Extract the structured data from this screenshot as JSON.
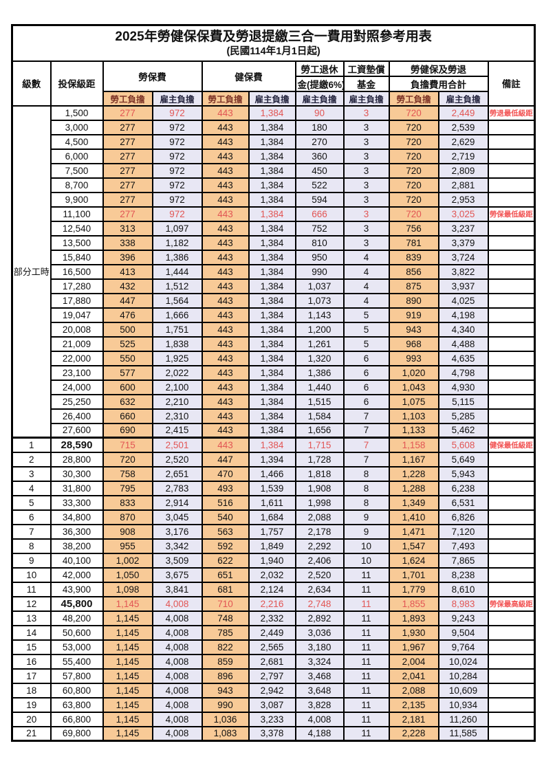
{
  "title": "2025年勞健保保費及勞退提繳三合一費用對照參考用表",
  "subtitle": "(民國114年1月1日起)",
  "colors": {
    "employee_bg": "#F8CA97",
    "employer_bg": "#E8E7F4",
    "highlight_text": "#E25554",
    "remark_text": "#F25454"
  },
  "header": {
    "level": "級數",
    "bracket": "投保級距",
    "labor_ins": "勞保費",
    "health_ins": "健保費",
    "pension_line1": "勞工退休",
    "pension_line2": "金(提繳6%)",
    "fund_line1": "工資墊償",
    "fund_line2": "基金",
    "total_line1": "勞健保及勞退",
    "total_line2": "負擔費用合計",
    "employee": "勞工負擔",
    "employer": "雇主負擔",
    "remark": "備註"
  },
  "part_time_label": "部分工時",
  "rows": [
    {
      "level": "",
      "bracket": "1,500",
      "values": [
        "277",
        "972",
        "443",
        "1,384",
        "90",
        "3",
        "720",
        "2,449"
      ],
      "remark": "勞退最低級距",
      "highlight": true,
      "bracket_bold": false,
      "section_start": false
    },
    {
      "level": "",
      "bracket": "3,000",
      "values": [
        "277",
        "972",
        "443",
        "1,384",
        "180",
        "3",
        "720",
        "2,539"
      ],
      "remark": "",
      "highlight": false,
      "bracket_bold": false,
      "section_start": false
    },
    {
      "level": "",
      "bracket": "4,500",
      "values": [
        "277",
        "972",
        "443",
        "1,384",
        "270",
        "3",
        "720",
        "2,629"
      ],
      "remark": "",
      "highlight": false,
      "bracket_bold": false,
      "section_start": false
    },
    {
      "level": "",
      "bracket": "6,000",
      "values": [
        "277",
        "972",
        "443",
        "1,384",
        "360",
        "3",
        "720",
        "2,719"
      ],
      "remark": "",
      "highlight": false,
      "bracket_bold": false,
      "section_start": false
    },
    {
      "level": "",
      "bracket": "7,500",
      "values": [
        "277",
        "972",
        "443",
        "1,384",
        "450",
        "3",
        "720",
        "2,809"
      ],
      "remark": "",
      "highlight": false,
      "bracket_bold": false,
      "section_start": false
    },
    {
      "level": "",
      "bracket": "8,700",
      "values": [
        "277",
        "972",
        "443",
        "1,384",
        "522",
        "3",
        "720",
        "2,881"
      ],
      "remark": "",
      "highlight": false,
      "bracket_bold": false,
      "section_start": false
    },
    {
      "level": "",
      "bracket": "9,900",
      "values": [
        "277",
        "972",
        "443",
        "1,384",
        "594",
        "3",
        "720",
        "2,953"
      ],
      "remark": "",
      "highlight": false,
      "bracket_bold": false,
      "section_start": false
    },
    {
      "level": "",
      "bracket": "11,100",
      "values": [
        "277",
        "972",
        "443",
        "1,384",
        "666",
        "3",
        "720",
        "3,025"
      ],
      "remark": "勞保最低級距",
      "highlight": true,
      "bracket_bold": false,
      "section_start": false
    },
    {
      "level": "",
      "bracket": "12,540",
      "values": [
        "313",
        "1,097",
        "443",
        "1,384",
        "752",
        "3",
        "756",
        "3,237"
      ],
      "remark": "",
      "highlight": false,
      "bracket_bold": false,
      "section_start": false
    },
    {
      "level": "",
      "bracket": "13,500",
      "values": [
        "338",
        "1,182",
        "443",
        "1,384",
        "810",
        "3",
        "781",
        "3,379"
      ],
      "remark": "",
      "highlight": false,
      "bracket_bold": false,
      "section_start": false
    },
    {
      "level": "",
      "bracket": "15,840",
      "values": [
        "396",
        "1,386",
        "443",
        "1,384",
        "950",
        "4",
        "839",
        "3,724"
      ],
      "remark": "",
      "highlight": false,
      "bracket_bold": false,
      "section_start": false
    },
    {
      "level": "",
      "bracket": "16,500",
      "values": [
        "413",
        "1,444",
        "443",
        "1,384",
        "990",
        "4",
        "856",
        "3,822"
      ],
      "remark": "",
      "highlight": false,
      "bracket_bold": false,
      "section_start": false
    },
    {
      "level": "",
      "bracket": "17,280",
      "values": [
        "432",
        "1,512",
        "443",
        "1,384",
        "1,037",
        "4",
        "875",
        "3,937"
      ],
      "remark": "",
      "highlight": false,
      "bracket_bold": false,
      "section_start": false
    },
    {
      "level": "",
      "bracket": "17,880",
      "values": [
        "447",
        "1,564",
        "443",
        "1,384",
        "1,073",
        "4",
        "890",
        "4,025"
      ],
      "remark": "",
      "highlight": false,
      "bracket_bold": false,
      "section_start": false
    },
    {
      "level": "",
      "bracket": "19,047",
      "values": [
        "476",
        "1,666",
        "443",
        "1,384",
        "1,143",
        "5",
        "919",
        "4,198"
      ],
      "remark": "",
      "highlight": false,
      "bracket_bold": false,
      "section_start": false
    },
    {
      "level": "",
      "bracket": "20,008",
      "values": [
        "500",
        "1,751",
        "443",
        "1,384",
        "1,200",
        "5",
        "943",
        "4,340"
      ],
      "remark": "",
      "highlight": false,
      "bracket_bold": false,
      "section_start": false
    },
    {
      "level": "",
      "bracket": "21,009",
      "values": [
        "525",
        "1,838",
        "443",
        "1,384",
        "1,261",
        "5",
        "968",
        "4,488"
      ],
      "remark": "",
      "highlight": false,
      "bracket_bold": false,
      "section_start": false
    },
    {
      "level": "",
      "bracket": "22,000",
      "values": [
        "550",
        "1,925",
        "443",
        "1,384",
        "1,320",
        "6",
        "993",
        "4,635"
      ],
      "remark": "",
      "highlight": false,
      "bracket_bold": false,
      "section_start": false
    },
    {
      "level": "",
      "bracket": "23,100",
      "values": [
        "577",
        "2,022",
        "443",
        "1,384",
        "1,386",
        "6",
        "1,020",
        "4,798"
      ],
      "remark": "",
      "highlight": false,
      "bracket_bold": false,
      "section_start": false
    },
    {
      "level": "",
      "bracket": "24,000",
      "values": [
        "600",
        "2,100",
        "443",
        "1,384",
        "1,440",
        "6",
        "1,043",
        "4,930"
      ],
      "remark": "",
      "highlight": false,
      "bracket_bold": false,
      "section_start": false
    },
    {
      "level": "",
      "bracket": "25,250",
      "values": [
        "632",
        "2,210",
        "443",
        "1,384",
        "1,515",
        "6",
        "1,075",
        "5,115"
      ],
      "remark": "",
      "highlight": false,
      "bracket_bold": false,
      "section_start": false
    },
    {
      "level": "",
      "bracket": "26,400",
      "values": [
        "660",
        "2,310",
        "443",
        "1,384",
        "1,584",
        "7",
        "1,103",
        "5,285"
      ],
      "remark": "",
      "highlight": false,
      "bracket_bold": false,
      "section_start": false
    },
    {
      "level": "",
      "bracket": "27,600",
      "values": [
        "690",
        "2,415",
        "443",
        "1,384",
        "1,656",
        "7",
        "1,133",
        "5,462"
      ],
      "remark": "",
      "highlight": false,
      "bracket_bold": false,
      "section_start": false
    },
    {
      "level": "1",
      "bracket": "28,590",
      "values": [
        "715",
        "2,501",
        "443",
        "1,384",
        "1,715",
        "7",
        "1,158",
        "5,608"
      ],
      "remark": "健保最低級距",
      "highlight": true,
      "bracket_bold": true,
      "section_start": true
    },
    {
      "level": "2",
      "bracket": "28,800",
      "values": [
        "720",
        "2,520",
        "447",
        "1,394",
        "1,728",
        "7",
        "1,167",
        "5,649"
      ],
      "remark": "",
      "highlight": false,
      "bracket_bold": false,
      "section_start": false
    },
    {
      "level": "3",
      "bracket": "30,300",
      "values": [
        "758",
        "2,651",
        "470",
        "1,466",
        "1,818",
        "8",
        "1,228",
        "5,943"
      ],
      "remark": "",
      "highlight": false,
      "bracket_bold": false,
      "section_start": false
    },
    {
      "level": "4",
      "bracket": "31,800",
      "values": [
        "795",
        "2,783",
        "493",
        "1,539",
        "1,908",
        "8",
        "1,288",
        "6,238"
      ],
      "remark": "",
      "highlight": false,
      "bracket_bold": false,
      "section_start": false
    },
    {
      "level": "5",
      "bracket": "33,300",
      "values": [
        "833",
        "2,914",
        "516",
        "1,611",
        "1,998",
        "8",
        "1,349",
        "6,531"
      ],
      "remark": "",
      "highlight": false,
      "bracket_bold": false,
      "section_start": false
    },
    {
      "level": "6",
      "bracket": "34,800",
      "values": [
        "870",
        "3,045",
        "540",
        "1,684",
        "2,088",
        "9",
        "1,410",
        "6,826"
      ],
      "remark": "",
      "highlight": false,
      "bracket_bold": false,
      "section_start": false
    },
    {
      "level": "7",
      "bracket": "36,300",
      "values": [
        "908",
        "3,176",
        "563",
        "1,757",
        "2,178",
        "9",
        "1,471",
        "7,120"
      ],
      "remark": "",
      "highlight": false,
      "bracket_bold": false,
      "section_start": false
    },
    {
      "level": "8",
      "bracket": "38,200",
      "values": [
        "955",
        "3,342",
        "592",
        "1,849",
        "2,292",
        "10",
        "1,547",
        "7,493"
      ],
      "remark": "",
      "highlight": false,
      "bracket_bold": false,
      "section_start": false
    },
    {
      "level": "9",
      "bracket": "40,100",
      "values": [
        "1,002",
        "3,509",
        "622",
        "1,940",
        "2,406",
        "10",
        "1,624",
        "7,865"
      ],
      "remark": "",
      "highlight": false,
      "bracket_bold": false,
      "section_start": false
    },
    {
      "level": "10",
      "bracket": "42,000",
      "values": [
        "1,050",
        "3,675",
        "651",
        "2,032",
        "2,520",
        "11",
        "1,701",
        "8,238"
      ],
      "remark": "",
      "highlight": false,
      "bracket_bold": false,
      "section_start": false
    },
    {
      "level": "11",
      "bracket": "43,900",
      "values": [
        "1,098",
        "3,841",
        "681",
        "2,124",
        "2,634",
        "11",
        "1,779",
        "8,610"
      ],
      "remark": "",
      "highlight": false,
      "bracket_bold": false,
      "section_start": false
    },
    {
      "level": "12",
      "bracket": "45,800",
      "values": [
        "1,145",
        "4,008",
        "710",
        "2,216",
        "2,748",
        "11",
        "1,855",
        "8,983"
      ],
      "remark": "勞保最高級距",
      "highlight": true,
      "bracket_bold": true,
      "section_start": false
    },
    {
      "level": "13",
      "bracket": "48,200",
      "values": [
        "1,145",
        "4,008",
        "748",
        "2,332",
        "2,892",
        "11",
        "1,893",
        "9,243"
      ],
      "remark": "",
      "highlight": false,
      "bracket_bold": false,
      "section_start": false
    },
    {
      "level": "14",
      "bracket": "50,600",
      "values": [
        "1,145",
        "4,008",
        "785",
        "2,449",
        "3,036",
        "11",
        "1,930",
        "9,504"
      ],
      "remark": "",
      "highlight": false,
      "bracket_bold": false,
      "section_start": false
    },
    {
      "level": "15",
      "bracket": "53,000",
      "values": [
        "1,145",
        "4,008",
        "822",
        "2,565",
        "3,180",
        "11",
        "1,967",
        "9,764"
      ],
      "remark": "",
      "highlight": false,
      "bracket_bold": false,
      "section_start": false
    },
    {
      "level": "16",
      "bracket": "55,400",
      "values": [
        "1,145",
        "4,008",
        "859",
        "2,681",
        "3,324",
        "11",
        "2,004",
        "10,024"
      ],
      "remark": "",
      "highlight": false,
      "bracket_bold": false,
      "section_start": false
    },
    {
      "level": "17",
      "bracket": "57,800",
      "values": [
        "1,145",
        "4,008",
        "896",
        "2,797",
        "3,468",
        "11",
        "2,041",
        "10,284"
      ],
      "remark": "",
      "highlight": false,
      "bracket_bold": false,
      "section_start": false
    },
    {
      "level": "18",
      "bracket": "60,800",
      "values": [
        "1,145",
        "4,008",
        "943",
        "2,942",
        "3,648",
        "11",
        "2,088",
        "10,609"
      ],
      "remark": "",
      "highlight": false,
      "bracket_bold": false,
      "section_start": false
    },
    {
      "level": "19",
      "bracket": "63,800",
      "values": [
        "1,145",
        "4,008",
        "990",
        "3,087",
        "3,828",
        "11",
        "2,135",
        "10,934"
      ],
      "remark": "",
      "highlight": false,
      "bracket_bold": false,
      "section_start": false
    },
    {
      "level": "20",
      "bracket": "66,800",
      "values": [
        "1,145",
        "4,008",
        "1,036",
        "3,233",
        "4,008",
        "11",
        "2,181",
        "11,260"
      ],
      "remark": "",
      "highlight": false,
      "bracket_bold": false,
      "section_start": false
    },
    {
      "level": "21",
      "bracket": "69,800",
      "values": [
        "1,145",
        "4,008",
        "1,083",
        "3,378",
        "4,188",
        "11",
        "2,228",
        "11,585"
      ],
      "remark": "",
      "highlight": false,
      "bracket_bold": false,
      "section_start": false
    }
  ]
}
